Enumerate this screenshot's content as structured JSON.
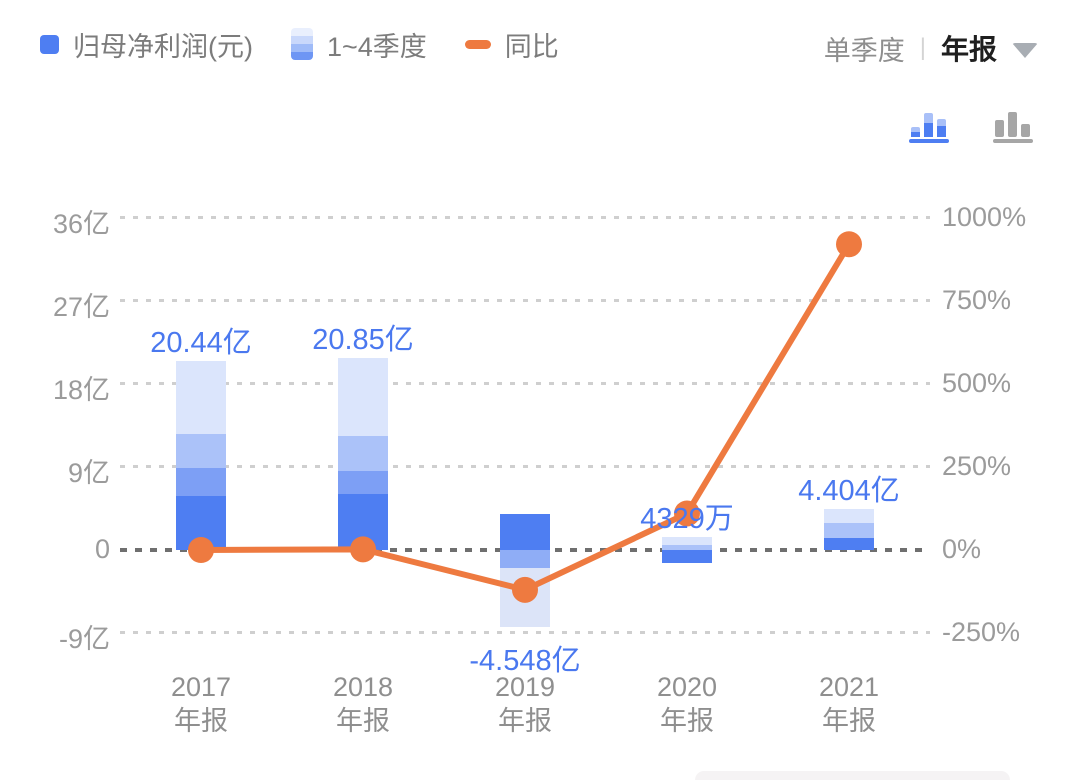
{
  "legend": {
    "items": [
      {
        "label": "归母净利润(元)",
        "swatch": "solid-blue-square"
      },
      {
        "label": "1~4季度",
        "swatch": "blue-gradient-bar"
      },
      {
        "label": "同比",
        "swatch": "orange-dash"
      }
    ]
  },
  "period_toggle": {
    "inactive": "单季度",
    "divider": "|",
    "active": "年报"
  },
  "chart_type_icons": [
    {
      "name": "stacked-bar-chart-icon",
      "active": true
    },
    {
      "name": "bar-chart-icon",
      "active": false
    }
  ],
  "colors": {
    "q1": "#4e7ef2",
    "q2": "#7d9ff5",
    "q3": "#abc2f9",
    "q4": "#dbe5fc",
    "neg_mid": "#8fadf6",
    "neg_pale": "#dce4f8",
    "line": "#ee7a40",
    "value_label": "#4a78ef",
    "axis_text": "#9b9b9b",
    "grid": "#cfcfcf",
    "zero_line": "#6f6f6f",
    "active_icon_blue": "#4e7ef2",
    "inactive_icon_gray": "#a6a6a6"
  },
  "chart_data": {
    "type": "bar",
    "subtype": "stacked-quarterly-bars-with-yoy-line",
    "legend_position": "top-left",
    "grid": "dotted-horizontal",
    "left_axis": {
      "unit": "亿",
      "range": [
        -9,
        36
      ],
      "ticks": [
        {
          "label": "36亿",
          "value": 36
        },
        {
          "label": "27亿",
          "value": 27
        },
        {
          "label": "18亿",
          "value": 18
        },
        {
          "label": "9亿",
          "value": 9
        },
        {
          "label": "0",
          "value": 0
        },
        {
          "label": "-9亿",
          "value": -9
        }
      ]
    },
    "right_axis": {
      "unit": "%",
      "range": [
        -250,
        1000
      ],
      "ticks": [
        {
          "label": "1000%",
          "value": 1000
        },
        {
          "label": "750%",
          "value": 750
        },
        {
          "label": "500%",
          "value": 500
        },
        {
          "label": "250%",
          "value": 250
        },
        {
          "label": "0%",
          "value": 0
        },
        {
          "label": "-250%",
          "value": -250
        }
      ]
    },
    "years": [
      {
        "year": "2017",
        "report": "年报",
        "value_label": "20.44亿",
        "total_yi": 20.44,
        "yoy_pct": 0,
        "segments": [
          [
            0,
            5.9,
            "q1"
          ],
          [
            5.9,
            8.9,
            "q2"
          ],
          [
            8.9,
            12.6,
            "q3"
          ],
          [
            12.6,
            20.44,
            "q4"
          ]
        ]
      },
      {
        "year": "2018",
        "report": "年报",
        "value_label": "20.85亿",
        "total_yi": 20.85,
        "yoy_pct": 2,
        "segments": [
          [
            0,
            6.1,
            "q1"
          ],
          [
            6.1,
            8.6,
            "q2"
          ],
          [
            8.6,
            12.4,
            "q3"
          ],
          [
            12.4,
            20.85,
            "q4"
          ]
        ]
      },
      {
        "year": "2019",
        "report": "年报",
        "value_label": "-4.548亿",
        "total_yi": -4.548,
        "yoy_pct": -120,
        "segments": [
          [
            0,
            3.9,
            "q1"
          ],
          [
            -2.0,
            0,
            "neg_mid"
          ],
          [
            -8.3,
            -2.0,
            "neg_pale"
          ]
        ]
      },
      {
        "year": "2020",
        "report": "年报",
        "value_label": "4329万",
        "total_yi": 0.4329,
        "yoy_pct": 110,
        "segments": [
          [
            -1.46,
            0,
            "q1"
          ],
          [
            0,
            0.49,
            "q3"
          ],
          [
            0.49,
            1.36,
            "q4"
          ]
        ]
      },
      {
        "year": "2021",
        "report": "年报",
        "value_label": "4.404亿",
        "total_yi": 4.404,
        "yoy_pct": 921,
        "segments": [
          [
            0,
            1.3,
            "q1"
          ],
          [
            1.3,
            2.9,
            "q3"
          ],
          [
            2.9,
            4.404,
            "q4"
          ]
        ]
      }
    ],
    "line_series": {
      "name": "同比",
      "values_pct": [
        0,
        2,
        -120,
        110,
        921
      ]
    }
  }
}
